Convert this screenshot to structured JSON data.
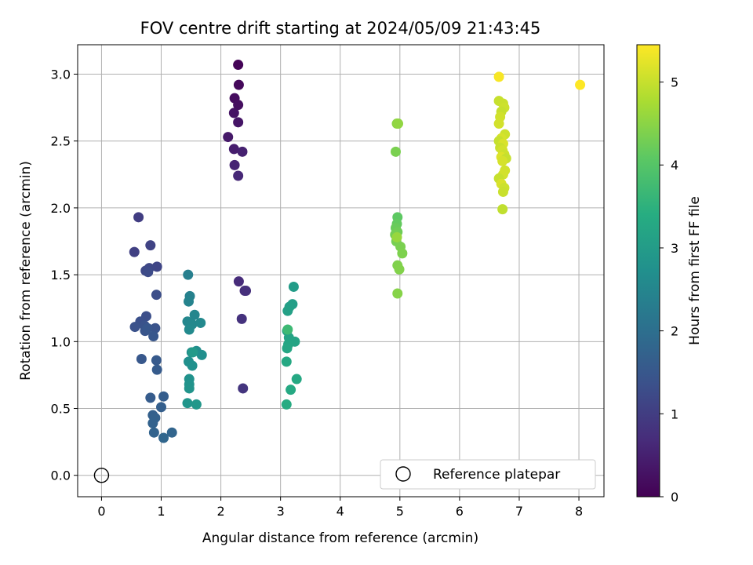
{
  "chart_data": {
    "type": "scatter",
    "title": "FOV centre drift starting at 2024/05/09 21:43:45",
    "xlabel": "Angular distance from reference (arcmin)",
    "ylabel": "Rotation from reference (arcmin)",
    "xlim": [
      -0.4,
      8.42
    ],
    "ylim": [
      -0.16,
      3.22
    ],
    "xticks": [
      0,
      1,
      2,
      3,
      4,
      5,
      6,
      7,
      8
    ],
    "xtick_labels": [
      "0",
      "1",
      "2",
      "3",
      "4",
      "5",
      "6",
      "7",
      "8"
    ],
    "yticks": [
      0,
      0.5,
      1,
      1.5,
      2,
      2.5,
      3
    ],
    "ytick_labels": [
      "0.0",
      "0.5",
      "1.0",
      "1.5",
      "2.0",
      "2.5",
      "3.0"
    ],
    "grid": true,
    "colormap": "viridis",
    "colorbar": {
      "label": "Hours from first FF file",
      "range": [
        0,
        5.45
      ],
      "ticks": [
        0,
        1,
        2,
        3,
        4,
        5
      ],
      "tick_labels": [
        "0",
        "1",
        "2",
        "3",
        "4",
        "5"
      ]
    },
    "legend": {
      "entries": [
        "Reference platepar"
      ],
      "position": "lower right"
    },
    "reference_point": {
      "x": 0,
      "y": 0
    },
    "points": [
      {
        "x": 2.29,
        "y": 3.07,
        "c": 0.05
      },
      {
        "x": 2.3,
        "y": 2.92,
        "c": 0.12
      },
      {
        "x": 2.23,
        "y": 2.82,
        "c": 0.18
      },
      {
        "x": 2.29,
        "y": 2.77,
        "c": 0.22
      },
      {
        "x": 2.22,
        "y": 2.71,
        "c": 0.28
      },
      {
        "x": 2.29,
        "y": 2.64,
        "c": 0.32
      },
      {
        "x": 2.12,
        "y": 2.53,
        "c": 0.38
      },
      {
        "x": 2.22,
        "y": 2.44,
        "c": 0.45
      },
      {
        "x": 2.36,
        "y": 2.42,
        "c": 0.5
      },
      {
        "x": 2.23,
        "y": 2.32,
        "c": 0.56
      },
      {
        "x": 2.29,
        "y": 2.24,
        "c": 0.62
      },
      {
        "x": 2.3,
        "y": 1.45,
        "c": 0.68
      },
      {
        "x": 2.4,
        "y": 1.38,
        "c": 0.72
      },
      {
        "x": 2.42,
        "y": 1.38,
        "c": 0.76
      },
      {
        "x": 2.35,
        "y": 1.17,
        "c": 0.8
      },
      {
        "x": 2.37,
        "y": 0.65,
        "c": 0.85
      },
      {
        "x": 0.62,
        "y": 1.93,
        "c": 1.0
      },
      {
        "x": 0.55,
        "y": 1.67,
        "c": 1.05
      },
      {
        "x": 0.82,
        "y": 1.72,
        "c": 1.1
      },
      {
        "x": 0.93,
        "y": 1.56,
        "c": 1.15
      },
      {
        "x": 0.8,
        "y": 1.55,
        "c": 1.18
      },
      {
        "x": 0.74,
        "y": 1.53,
        "c": 1.2
      },
      {
        "x": 0.78,
        "y": 1.52,
        "c": 1.25
      },
      {
        "x": 0.92,
        "y": 1.35,
        "c": 1.3
      },
      {
        "x": 0.75,
        "y": 1.19,
        "c": 1.32
      },
      {
        "x": 0.65,
        "y": 1.15,
        "c": 1.35
      },
      {
        "x": 0.56,
        "y": 1.11,
        "c": 1.38
      },
      {
        "x": 0.72,
        "y": 1.12,
        "c": 1.4
      },
      {
        "x": 0.9,
        "y": 1.1,
        "c": 1.42
      },
      {
        "x": 0.73,
        "y": 1.08,
        "c": 1.45
      },
      {
        "x": 0.77,
        "y": 1.1,
        "c": 1.48
      },
      {
        "x": 0.87,
        "y": 1.04,
        "c": 1.5
      },
      {
        "x": 0.67,
        "y": 0.87,
        "c": 1.52
      },
      {
        "x": 0.92,
        "y": 0.86,
        "c": 1.55
      },
      {
        "x": 0.93,
        "y": 0.79,
        "c": 1.58
      },
      {
        "x": 0.82,
        "y": 0.58,
        "c": 1.6
      },
      {
        "x": 1.04,
        "y": 0.59,
        "c": 1.62
      },
      {
        "x": 1.0,
        "y": 0.51,
        "c": 1.65
      },
      {
        "x": 0.86,
        "y": 0.45,
        "c": 1.68
      },
      {
        "x": 0.9,
        "y": 0.43,
        "c": 1.7
      },
      {
        "x": 0.86,
        "y": 0.39,
        "c": 1.72
      },
      {
        "x": 0.88,
        "y": 0.32,
        "c": 1.75
      },
      {
        "x": 1.18,
        "y": 0.32,
        "c": 1.78
      },
      {
        "x": 1.04,
        "y": 0.28,
        "c": 1.8
      },
      {
        "x": 1.45,
        "y": 1.5,
        "c": 2.35
      },
      {
        "x": 1.48,
        "y": 1.34,
        "c": 2.4
      },
      {
        "x": 1.46,
        "y": 1.3,
        "c": 2.45
      },
      {
        "x": 1.56,
        "y": 1.2,
        "c": 2.5
      },
      {
        "x": 1.44,
        "y": 1.15,
        "c": 2.52
      },
      {
        "x": 1.52,
        "y": 1.13,
        "c": 2.55
      },
      {
        "x": 1.66,
        "y": 1.14,
        "c": 2.58
      },
      {
        "x": 1.47,
        "y": 1.09,
        "c": 2.6
      },
      {
        "x": 1.51,
        "y": 0.92,
        "c": 2.65
      },
      {
        "x": 1.59,
        "y": 0.93,
        "c": 2.68
      },
      {
        "x": 1.68,
        "y": 0.9,
        "c": 2.7
      },
      {
        "x": 1.46,
        "y": 0.85,
        "c": 2.72
      },
      {
        "x": 1.52,
        "y": 0.82,
        "c": 2.75
      },
      {
        "x": 1.47,
        "y": 0.72,
        "c": 2.78
      },
      {
        "x": 1.47,
        "y": 0.68,
        "c": 2.8
      },
      {
        "x": 1.47,
        "y": 0.65,
        "c": 2.82
      },
      {
        "x": 1.44,
        "y": 0.54,
        "c": 2.85
      },
      {
        "x": 1.59,
        "y": 0.53,
        "c": 2.88
      },
      {
        "x": 1.53,
        "y": 0.92,
        "c": 2.95
      },
      {
        "x": 3.22,
        "y": 1.41,
        "c": 3.0
      },
      {
        "x": 3.2,
        "y": 1.28,
        "c": 3.05
      },
      {
        "x": 3.15,
        "y": 1.26,
        "c": 3.08
      },
      {
        "x": 3.12,
        "y": 1.23,
        "c": 3.1
      },
      {
        "x": 3.11,
        "y": 1.08,
        "c": 3.15
      },
      {
        "x": 3.14,
        "y": 1.03,
        "c": 3.18
      },
      {
        "x": 3.24,
        "y": 1.0,
        "c": 3.2
      },
      {
        "x": 3.13,
        "y": 0.98,
        "c": 3.22
      },
      {
        "x": 3.11,
        "y": 0.95,
        "c": 3.25
      },
      {
        "x": 3.1,
        "y": 0.85,
        "c": 3.28
      },
      {
        "x": 3.27,
        "y": 0.72,
        "c": 3.3
      },
      {
        "x": 3.17,
        "y": 0.64,
        "c": 3.32
      },
      {
        "x": 3.1,
        "y": 0.53,
        "c": 3.35
      },
      {
        "x": 3.12,
        "y": 1.09,
        "c": 3.7
      },
      {
        "x": 4.95,
        "y": 2.63,
        "c": 4.5
      },
      {
        "x": 4.97,
        "y": 2.63,
        "c": 4.55
      },
      {
        "x": 4.93,
        "y": 2.42,
        "c": 4.35
      },
      {
        "x": 4.96,
        "y": 1.93,
        "c": 4.1
      },
      {
        "x": 4.95,
        "y": 1.88,
        "c": 4.15
      },
      {
        "x": 4.93,
        "y": 1.85,
        "c": 4.2
      },
      {
        "x": 4.96,
        "y": 1.82,
        "c": 4.25
      },
      {
        "x": 4.92,
        "y": 1.8,
        "c": 4.3
      },
      {
        "x": 4.94,
        "y": 1.75,
        "c": 4.32
      },
      {
        "x": 5.01,
        "y": 1.71,
        "c": 4.35
      },
      {
        "x": 5.04,
        "y": 1.66,
        "c": 4.38
      },
      {
        "x": 4.96,
        "y": 1.57,
        "c": 4.4
      },
      {
        "x": 4.99,
        "y": 1.54,
        "c": 4.42
      },
      {
        "x": 4.96,
        "y": 1.36,
        "c": 4.45
      },
      {
        "x": 4.95,
        "y": 1.78,
        "c": 4.6
      },
      {
        "x": 6.66,
        "y": 2.98,
        "c": 5.4
      },
      {
        "x": 6.66,
        "y": 2.8,
        "c": 5.0
      },
      {
        "x": 6.73,
        "y": 2.78,
        "c": 5.02
      },
      {
        "x": 6.75,
        "y": 2.75,
        "c": 5.05
      },
      {
        "x": 6.7,
        "y": 2.72,
        "c": 5.0
      },
      {
        "x": 6.68,
        "y": 2.68,
        "c": 5.08
      },
      {
        "x": 6.66,
        "y": 2.63,
        "c": 5.1
      },
      {
        "x": 6.76,
        "y": 2.55,
        "c": 5.05
      },
      {
        "x": 6.7,
        "y": 2.52,
        "c": 5.12
      },
      {
        "x": 6.66,
        "y": 2.5,
        "c": 5.0
      },
      {
        "x": 6.73,
        "y": 2.48,
        "c": 5.15
      },
      {
        "x": 6.68,
        "y": 2.45,
        "c": 5.02
      },
      {
        "x": 6.72,
        "y": 2.43,
        "c": 5.1
      },
      {
        "x": 6.75,
        "y": 2.4,
        "c": 5.05
      },
      {
        "x": 6.7,
        "y": 2.38,
        "c": 5.18
      },
      {
        "x": 6.78,
        "y": 2.37,
        "c": 5.0
      },
      {
        "x": 6.72,
        "y": 2.35,
        "c": 5.12
      },
      {
        "x": 6.76,
        "y": 2.28,
        "c": 5.08
      },
      {
        "x": 6.73,
        "y": 2.25,
        "c": 5.1
      },
      {
        "x": 6.66,
        "y": 2.22,
        "c": 5.0
      },
      {
        "x": 6.7,
        "y": 2.18,
        "c": 5.15
      },
      {
        "x": 6.75,
        "y": 2.15,
        "c": 5.05
      },
      {
        "x": 6.73,
        "y": 2.12,
        "c": 5.02
      },
      {
        "x": 6.72,
        "y": 1.99,
        "c": 4.95
      },
      {
        "x": 8.02,
        "y": 2.92,
        "c": 5.45
      }
    ]
  }
}
